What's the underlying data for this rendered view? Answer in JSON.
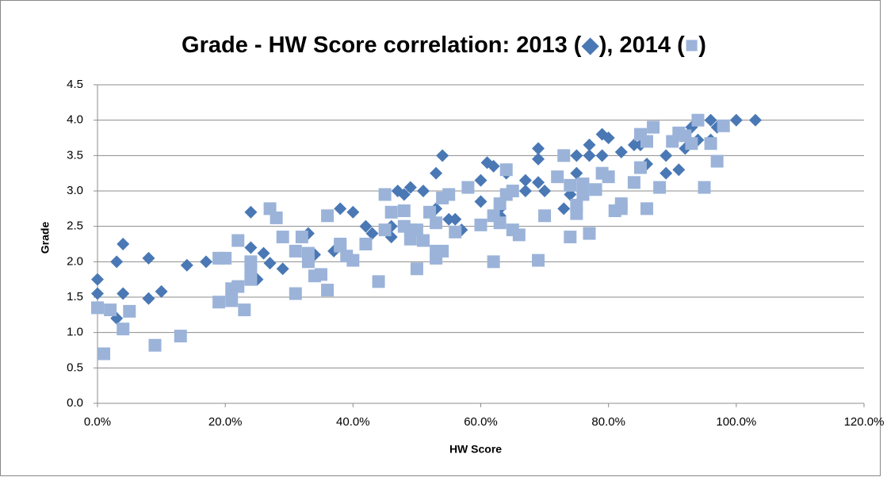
{
  "chart_data": {
    "type": "scatter",
    "title": "Grade - HW Score correlation: 2013 (◆), 2014 (■)",
    "x_label": "HW Score",
    "y_label": "Grade",
    "xlim": [
      0,
      1.2
    ],
    "xticks": [
      {
        "value": 0,
        "label": "0.0%"
      },
      {
        "value": 0.2,
        "label": "20.0%"
      },
      {
        "value": 0.4,
        "label": "40.0%"
      },
      {
        "value": 0.6,
        "label": "60.0%"
      },
      {
        "value": 0.8,
        "label": "80.0%"
      },
      {
        "value": 1,
        "label": "100.0%"
      },
      {
        "value": 1.2,
        "label": "120.0%"
      }
    ],
    "ylim": [
      0,
      4.5
    ],
    "yticks": [
      {
        "value": 0,
        "label": "0.0"
      },
      0.5,
      {
        "value": 1,
        "label": "1.0"
      },
      1.5,
      {
        "value": 2,
        "label": "2.0"
      },
      2.5,
      {
        "value": 3,
        "label": "3.0"
      },
      3.5,
      {
        "value": 4,
        "label": "4.0"
      },
      4.5
    ],
    "grid": true,
    "series": [
      {
        "marker": "diamond",
        "color": "#4a78b5",
        "x": [
          0,
          0,
          0.03,
          0.04,
          0.03,
          0.04,
          0.08,
          0.08,
          0.1,
          0.14,
          0.17,
          0.19,
          0.21,
          0.24,
          0.24,
          0.25,
          0.26,
          0.27,
          0.29,
          0.33,
          0.33,
          0.34,
          0.38,
          0.4,
          0.37,
          0.42,
          0.43,
          0.46,
          0.46,
          0.47,
          0.48,
          0.49,
          0.51,
          0.53,
          0.53,
          0.54,
          0.55,
          0.56,
          0.57,
          0.6,
          0.6,
          0.61,
          0.62,
          0.63,
          0.63,
          0.64,
          0.67,
          0.67,
          0.69,
          0.69,
          0.7,
          0.69,
          0.73,
          0.74,
          0.75,
          0.75,
          0.77,
          0.77,
          0.79,
          0.79,
          0.8,
          0.82,
          0.84,
          0.85,
          0.86,
          0.87,
          0.89,
          0.89,
          0.91,
          0.92,
          0.93,
          0.94,
          0.96,
          0.96,
          0.97,
          1.0,
          1.03
        ],
        "values": [
          1.75,
          1.55,
          2.0,
          2.25,
          1.2,
          1.55,
          2.05,
          1.48,
          1.58,
          1.95,
          2.0,
          2.05,
          1.6,
          2.7,
          2.2,
          1.75,
          2.12,
          1.98,
          1.9,
          2.4,
          2.0,
          2.1,
          2.75,
          2.7,
          2.15,
          2.5,
          2.4,
          2.5,
          2.35,
          3.0,
          2.95,
          3.05,
          3.0,
          2.75,
          3.25,
          3.5,
          2.6,
          2.6,
          2.45,
          3.15,
          2.85,
          3.4,
          3.35,
          2.75,
          2.65,
          3.25,
          3.0,
          3.15,
          3.6,
          3.45,
          3.0,
          3.12,
          2.75,
          2.95,
          3.25,
          3.5,
          3.65,
          3.5,
          3.8,
          3.5,
          3.75,
          3.55,
          3.65,
          3.65,
          3.38,
          3.9,
          3.5,
          3.25,
          3.3,
          3.6,
          3.9,
          3.72,
          3.72,
          4.0,
          3.9,
          4.0,
          4.0
        ]
      },
      {
        "marker": "square",
        "color": "#9bb3d9",
        "x": [
          0,
          0.01,
          0.02,
          0.05,
          0.04,
          0.09,
          0.13,
          0.19,
          0.19,
          0.2,
          0.21,
          0.21,
          0.22,
          0.22,
          0.23,
          0.24,
          0.24,
          0.24,
          0.27,
          0.28,
          0.29,
          0.31,
          0.31,
          0.32,
          0.33,
          0.33,
          0.34,
          0.35,
          0.36,
          0.36,
          0.38,
          0.38,
          0.39,
          0.4,
          0.42,
          0.44,
          0.45,
          0.45,
          0.46,
          0.48,
          0.48,
          0.49,
          0.49,
          0.5,
          0.5,
          0.51,
          0.52,
          0.53,
          0.53,
          0.53,
          0.54,
          0.54,
          0.55,
          0.56,
          0.58,
          0.6,
          0.62,
          0.62,
          0.63,
          0.63,
          0.64,
          0.64,
          0.65,
          0.65,
          0.66,
          0.69,
          0.7,
          0.72,
          0.73,
          0.74,
          0.74,
          0.75,
          0.75,
          0.76,
          0.76,
          0.77,
          0.78,
          0.79,
          0.8,
          0.81,
          0.82,
          0.82,
          0.84,
          0.85,
          0.85,
          0.86,
          0.86,
          0.87,
          0.88,
          0.9,
          0.91,
          0.92,
          0.93,
          0.94,
          0.95,
          0.96,
          0.97,
          0.98
        ],
        "values": [
          1.35,
          0.7,
          1.32,
          1.3,
          1.05,
          0.82,
          0.95,
          2.05,
          1.43,
          2.05,
          1.45,
          1.62,
          1.65,
          2.3,
          1.32,
          2.0,
          1.88,
          1.75,
          2.75,
          2.62,
          2.35,
          1.55,
          2.15,
          2.35,
          2.12,
          2.0,
          1.8,
          1.82,
          1.6,
          2.65,
          2.25,
          2.22,
          2.08,
          2.02,
          2.25,
          1.72,
          2.45,
          2.95,
          2.7,
          2.72,
          2.5,
          2.45,
          2.32,
          2.45,
          1.9,
          2.3,
          2.7,
          2.55,
          2.15,
          2.05,
          2.15,
          2.9,
          2.95,
          2.42,
          3.05,
          2.52,
          2.65,
          2.0,
          2.55,
          2.82,
          2.95,
          3.3,
          3.0,
          2.45,
          2.38,
          2.02,
          2.65,
          3.2,
          3.5,
          2.35,
          3.08,
          2.8,
          2.68,
          2.95,
          3.1,
          2.4,
          3.02,
          3.25,
          3.2,
          2.72,
          2.75,
          2.82,
          3.12,
          3.33,
          3.8,
          3.7,
          2.75,
          3.9,
          3.05,
          3.7,
          3.82,
          3.78,
          3.67,
          4.0,
          3.05,
          3.67,
          3.42,
          3.92
        ]
      }
    ]
  }
}
